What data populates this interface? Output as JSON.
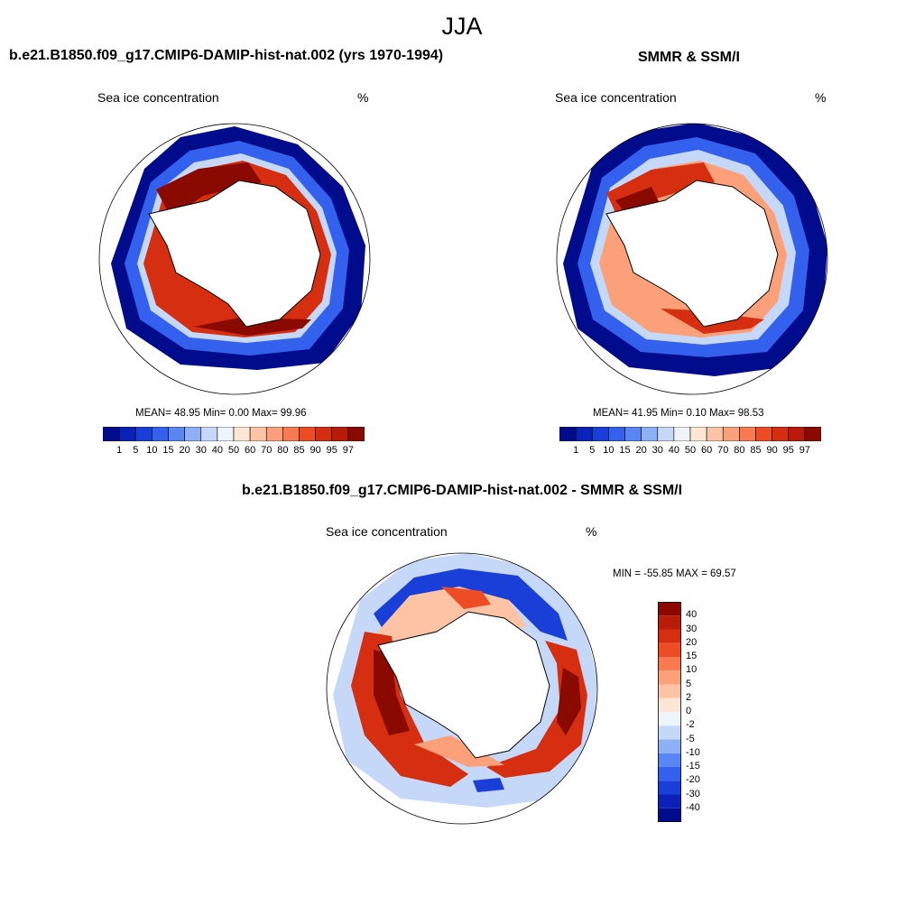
{
  "figure": {
    "season": "JJA"
  },
  "panels": {
    "model": {
      "title": "b.e21.B1850.f09_g17.CMIP6-DAMIP-hist-nat.002 (yrs 1970-1994)",
      "variable": "Sea ice concentration",
      "units": "%",
      "stats": "MEAN=  48.95  Min=   0.00  Max=  99.96"
    },
    "obs": {
      "title": "SMMR & SSM/I",
      "variable": "Sea ice concentration",
      "units": "%",
      "stats": "MEAN=  41.95  Min=   0.10  Max=  98.53"
    },
    "diff": {
      "title": "b.e21.B1850.f09_g17.CMIP6-DAMIP-hist-nat.002 - SMMR & SSM/I",
      "variable": "Sea ice concentration",
      "units": "%",
      "stats": "MIN = -55.85 MAX =  69.57"
    }
  },
  "colorbars": {
    "concentration": {
      "labels": [
        "1",
        "5",
        "10",
        "15",
        "20",
        "30",
        "40",
        "50",
        "60",
        "70",
        "80",
        "85",
        "90",
        "95",
        "97"
      ],
      "colors": [
        "#000c8c",
        "#0a22b8",
        "#1a3ed8",
        "#3460ee",
        "#5a86f4",
        "#8eb0f6",
        "#c6d8f8",
        "#eef4fc",
        "#fde6d4",
        "#fcc4a4",
        "#fca07a",
        "#f77a50",
        "#ee4c24",
        "#d62e10",
        "#b81c08",
        "#8a0a00"
      ]
    },
    "difference": {
      "labels": [
        "40",
        "30",
        "20",
        "15",
        "10",
        "5",
        "2",
        "0",
        "-2",
        "-5",
        "-10",
        "-15",
        "-20",
        "-30",
        "-40"
      ],
      "colors": [
        "#8a0a00",
        "#b81c08",
        "#d62e10",
        "#ee4c24",
        "#f77a50",
        "#fca07a",
        "#fcc4a4",
        "#fde6d4",
        "#eef4fc",
        "#c6d8f8",
        "#8eb0f6",
        "#5a86f4",
        "#3460ee",
        "#1a3ed8",
        "#0a22b8",
        "#000c8c"
      ]
    }
  }
}
